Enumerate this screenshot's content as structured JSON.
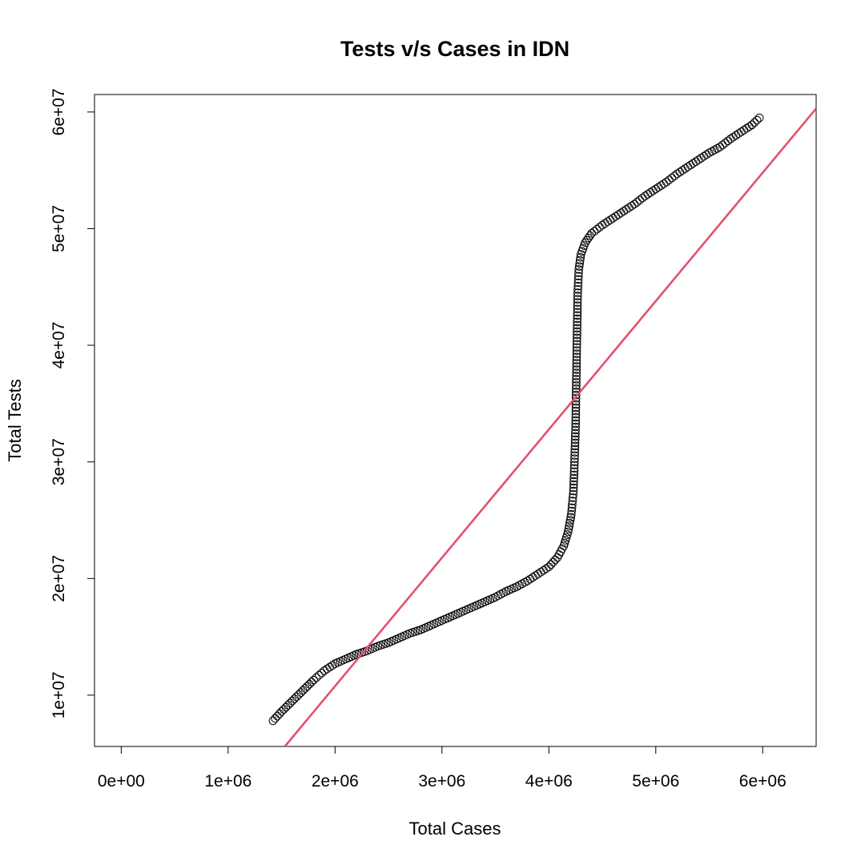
{
  "chart_data": {
    "type": "scatter",
    "title": "Tests v/s Cases in IDN",
    "xlabel": "Total Cases",
    "ylabel": "Total Tests",
    "xlim": [
      -250000,
      6500000
    ],
    "ylim": [
      5600000,
      61500000
    ],
    "x_ticks": [
      0,
      1000000,
      2000000,
      3000000,
      4000000,
      5000000,
      6000000
    ],
    "x_tick_labels": [
      "0e+00",
      "1e+06",
      "2e+06",
      "3e+06",
      "4e+06",
      "5e+06",
      "6e+06"
    ],
    "y_ticks": [
      10000000,
      20000000,
      30000000,
      40000000,
      50000000,
      60000000
    ],
    "y_tick_labels": [
      "1e+07",
      "2e+07",
      "3e+07",
      "4e+07",
      "5e+07",
      "6e+07"
    ],
    "grid": false,
    "legend": "none",
    "point_color": "#000000",
    "series": [
      {
        "points": [
          [
            1420000,
            7800000
          ],
          [
            1500000,
            8600000
          ],
          [
            1600000,
            9500000
          ],
          [
            1700000,
            10400000
          ],
          [
            1800000,
            11300000
          ],
          [
            1900000,
            12100000
          ],
          [
            2000000,
            12700000
          ],
          [
            2100000,
            13100000
          ],
          [
            2200000,
            13500000
          ],
          [
            2300000,
            13800000
          ],
          [
            2400000,
            14200000
          ],
          [
            2500000,
            14500000
          ],
          [
            2600000,
            14900000
          ],
          [
            2700000,
            15300000
          ],
          [
            2800000,
            15600000
          ],
          [
            2900000,
            16000000
          ],
          [
            3000000,
            16400000
          ],
          [
            3100000,
            16800000
          ],
          [
            3200000,
            17200000
          ],
          [
            3300000,
            17600000
          ],
          [
            3400000,
            18000000
          ],
          [
            3500000,
            18400000
          ],
          [
            3600000,
            18900000
          ],
          [
            3700000,
            19300000
          ],
          [
            3800000,
            19800000
          ],
          [
            3900000,
            20400000
          ],
          [
            4000000,
            21000000
          ],
          [
            4080000,
            21800000
          ],
          [
            4140000,
            22800000
          ],
          [
            4180000,
            24000000
          ],
          [
            4210000,
            25500000
          ],
          [
            4230000,
            27500000
          ],
          [
            4240000,
            30000000
          ],
          [
            4250000,
            33000000
          ],
          [
            4255000,
            36000000
          ],
          [
            4260000,
            39000000
          ],
          [
            4265000,
            42000000
          ],
          [
            4270000,
            44500000
          ],
          [
            4280000,
            46500000
          ],
          [
            4300000,
            47800000
          ],
          [
            4340000,
            48800000
          ],
          [
            4400000,
            49600000
          ],
          [
            4500000,
            50300000
          ],
          [
            4600000,
            50900000
          ],
          [
            4700000,
            51500000
          ],
          [
            4800000,
            52100000
          ],
          [
            4900000,
            52800000
          ],
          [
            5000000,
            53400000
          ],
          [
            5100000,
            54000000
          ],
          [
            5200000,
            54700000
          ],
          [
            5300000,
            55300000
          ],
          [
            5400000,
            55900000
          ],
          [
            5500000,
            56500000
          ],
          [
            5600000,
            57000000
          ],
          [
            5700000,
            57700000
          ],
          [
            5800000,
            58300000
          ],
          [
            5900000,
            58900000
          ],
          [
            5970000,
            59500000
          ]
        ]
      }
    ],
    "fit_line": {
      "color": "#DF536B",
      "x": [
        1530000,
        6500000
      ],
      "y": [
        5600000,
        60300000
      ]
    }
  }
}
